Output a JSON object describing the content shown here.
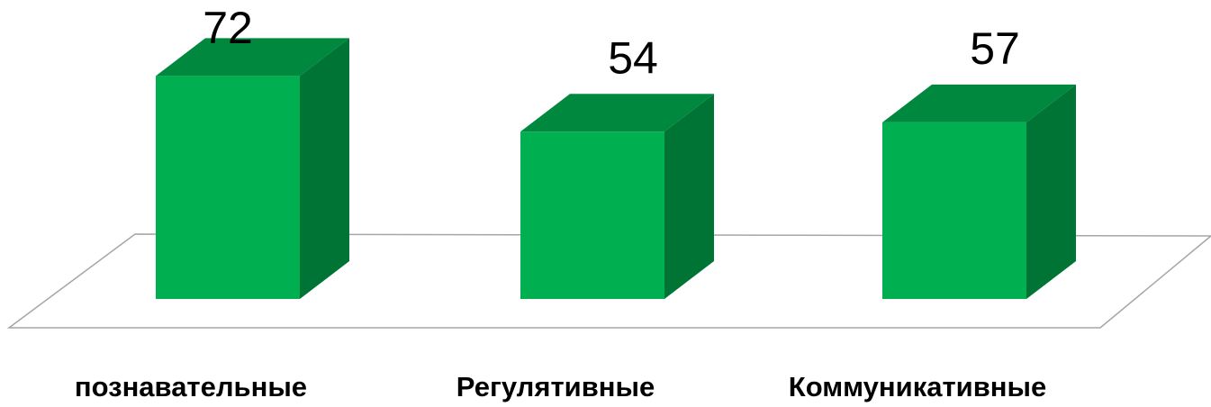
{
  "chart_data": {
    "type": "bar3d",
    "categories": [
      "познавательные",
      "Регулятивные",
      "Коммуникативные"
    ],
    "values": [
      72,
      54,
      57
    ],
    "color": "#00b050"
  }
}
